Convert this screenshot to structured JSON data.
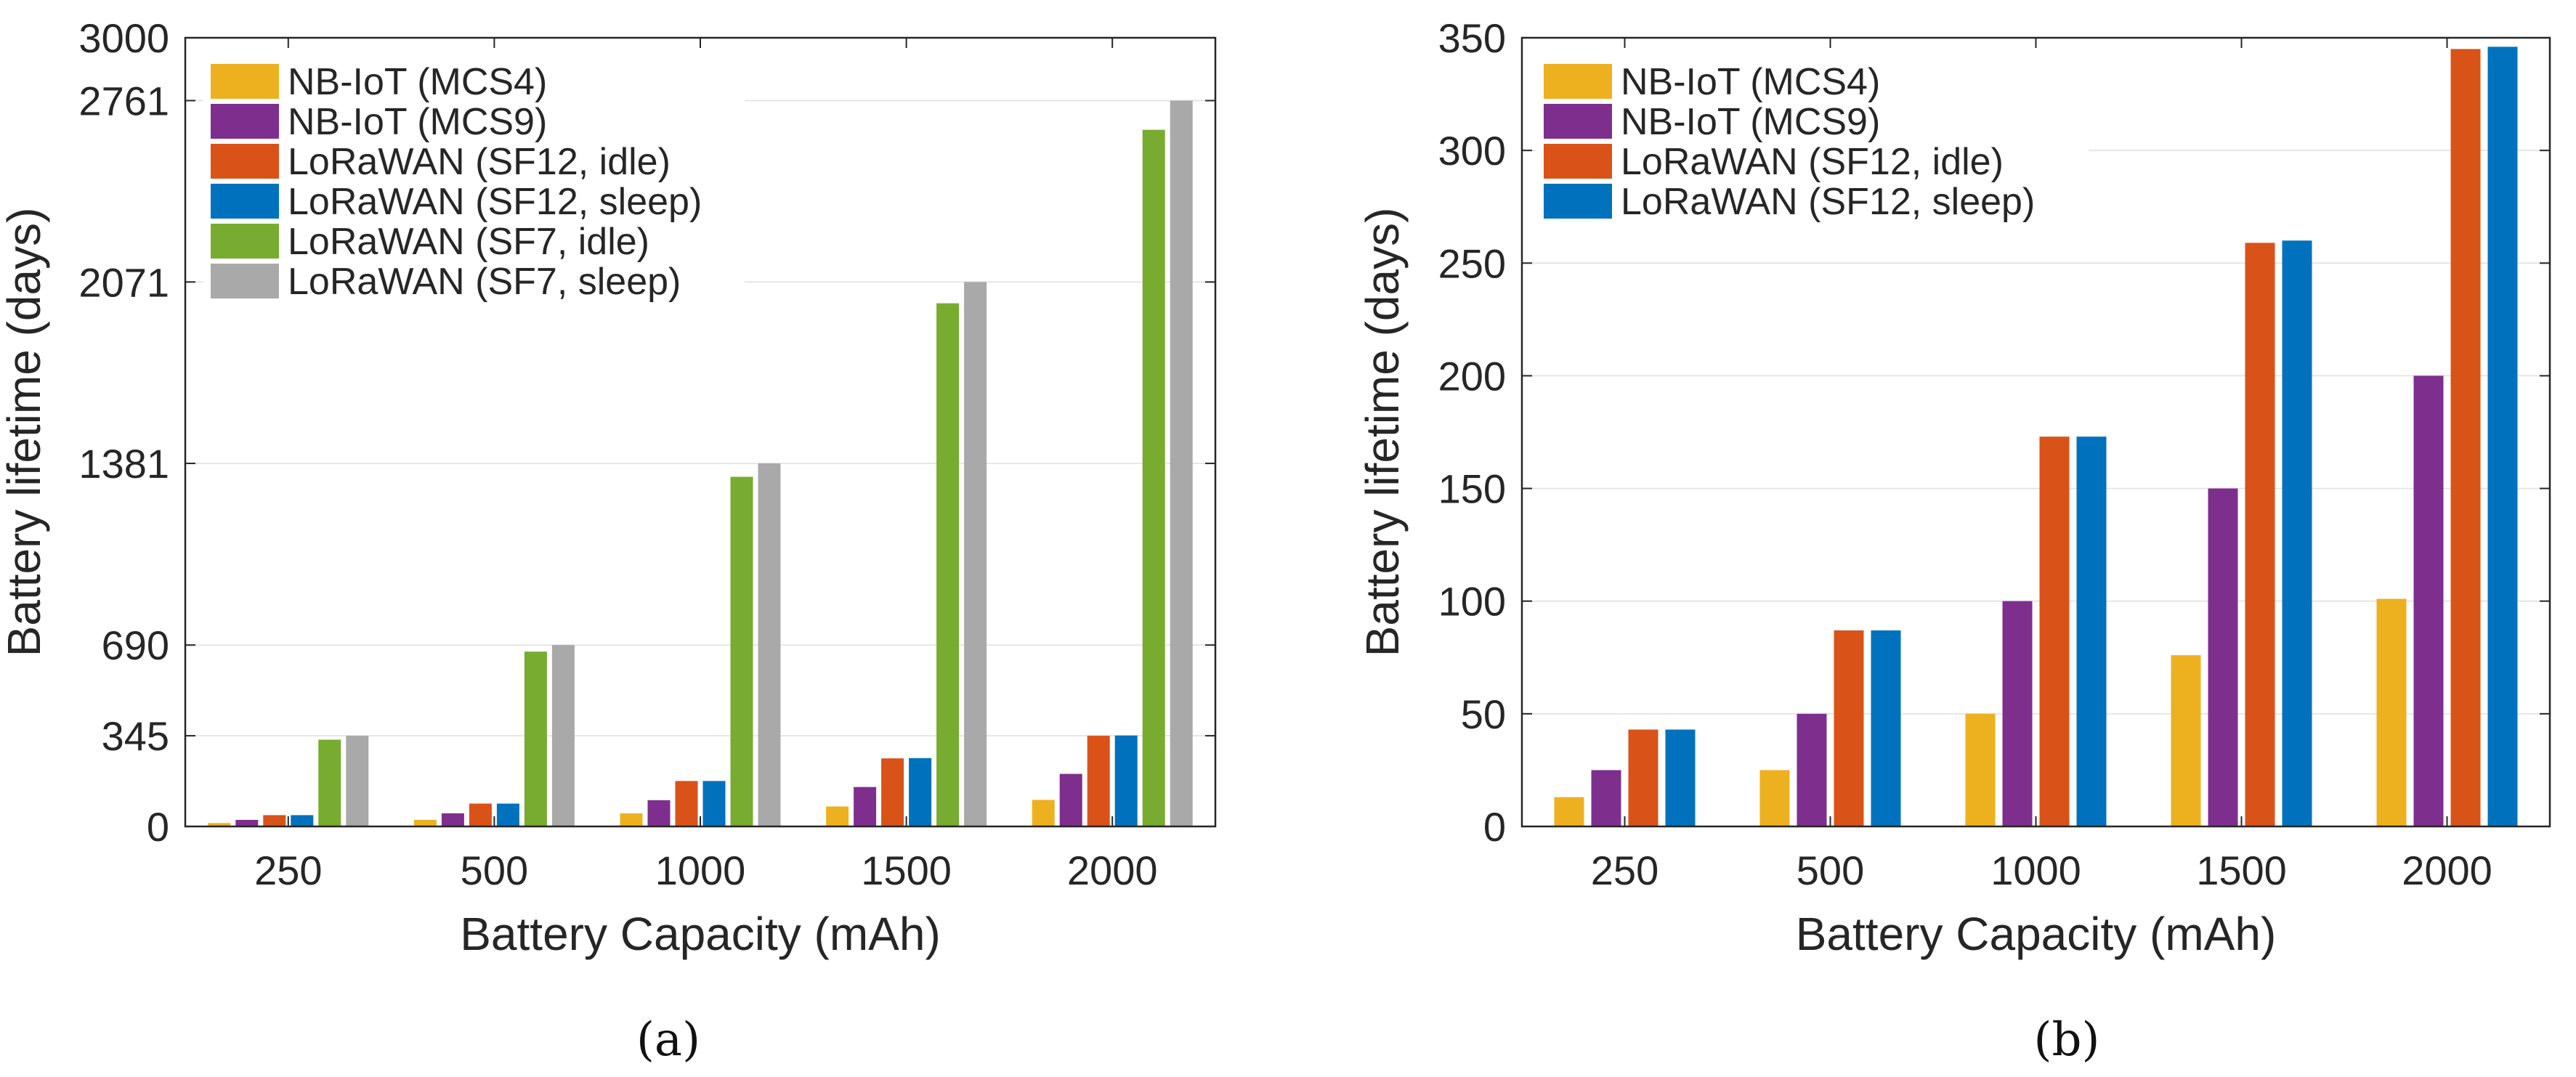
{
  "colors": {
    "nbiot_mcs4": "#EDB120",
    "nbiot_mcs9": "#7E2F8E",
    "lora_sf12_idle": "#D95319",
    "lora_sf12_sleep": "#0072BD",
    "lora_sf7_idle": "#77AC30",
    "lora_sf7_sleep": "#A9A9A9",
    "grid": "#E6E6E6",
    "axis": "#262626"
  },
  "panels": [
    {
      "label": "(a)"
    },
    {
      "label": "(b)"
    }
  ],
  "chart_data": [
    {
      "type": "bar",
      "panel": "(a)",
      "categories": [
        "250",
        "500",
        "1000",
        "1500",
        "2000"
      ],
      "xlabel": "Battery Capacity (mAh)",
      "ylabel": "Battery lifetime (days)",
      "ylim": [
        0,
        3000
      ],
      "yticks": [
        0,
        345,
        690,
        1381,
        2071,
        2761,
        3000
      ],
      "grid": true,
      "legend_position": "top-left",
      "series": [
        {
          "name": "NB-IoT (MCS4)",
          "color_key": "nbiot_mcs4",
          "values": [
            13,
            25,
            50,
            76,
            101
          ]
        },
        {
          "name": "NB-IoT (MCS9)",
          "color_key": "nbiot_mcs9",
          "values": [
            25,
            50,
            100,
            150,
            200
          ]
        },
        {
          "name": "LoRaWAN (SF12, idle)",
          "color_key": "lora_sf12_idle",
          "values": [
            43,
            87,
            173,
            259,
            345
          ]
        },
        {
          "name": "LoRaWAN (SF12, sleep)",
          "color_key": "lora_sf12_sleep",
          "values": [
            43,
            87,
            173,
            260,
            346
          ]
        },
        {
          "name": "LoRaWAN (SF7, idle)",
          "color_key": "lora_sf7_idle",
          "values": [
            330,
            665,
            1330,
            1990,
            2650
          ]
        },
        {
          "name": "LoRaWAN (SF7, sleep)",
          "color_key": "lora_sf7_sleep",
          "values": [
            345,
            690,
            1381,
            2071,
            2761
          ]
        }
      ]
    },
    {
      "type": "bar",
      "panel": "(b)",
      "categories": [
        "250",
        "500",
        "1000",
        "1500",
        "2000"
      ],
      "xlabel": "Battery Capacity (mAh)",
      "ylabel": "Battery lifetime (days)",
      "ylim": [
        0,
        350
      ],
      "yticks": [
        0,
        50,
        100,
        150,
        200,
        250,
        300,
        350
      ],
      "grid": true,
      "legend_position": "top-left",
      "series": [
        {
          "name": "NB-IoT (MCS4)",
          "color_key": "nbiot_mcs4",
          "values": [
            13,
            25,
            50,
            76,
            101
          ]
        },
        {
          "name": "NB-IoT (MCS9)",
          "color_key": "nbiot_mcs9",
          "values": [
            25,
            50,
            100,
            150,
            200
          ]
        },
        {
          "name": "LoRaWAN (SF12, idle)",
          "color_key": "lora_sf12_idle",
          "values": [
            43,
            87,
            173,
            259,
            345
          ]
        },
        {
          "name": "LoRaWAN (SF12, sleep)",
          "color_key": "lora_sf12_sleep",
          "values": [
            43,
            87,
            173,
            260,
            346
          ]
        }
      ]
    }
  ]
}
